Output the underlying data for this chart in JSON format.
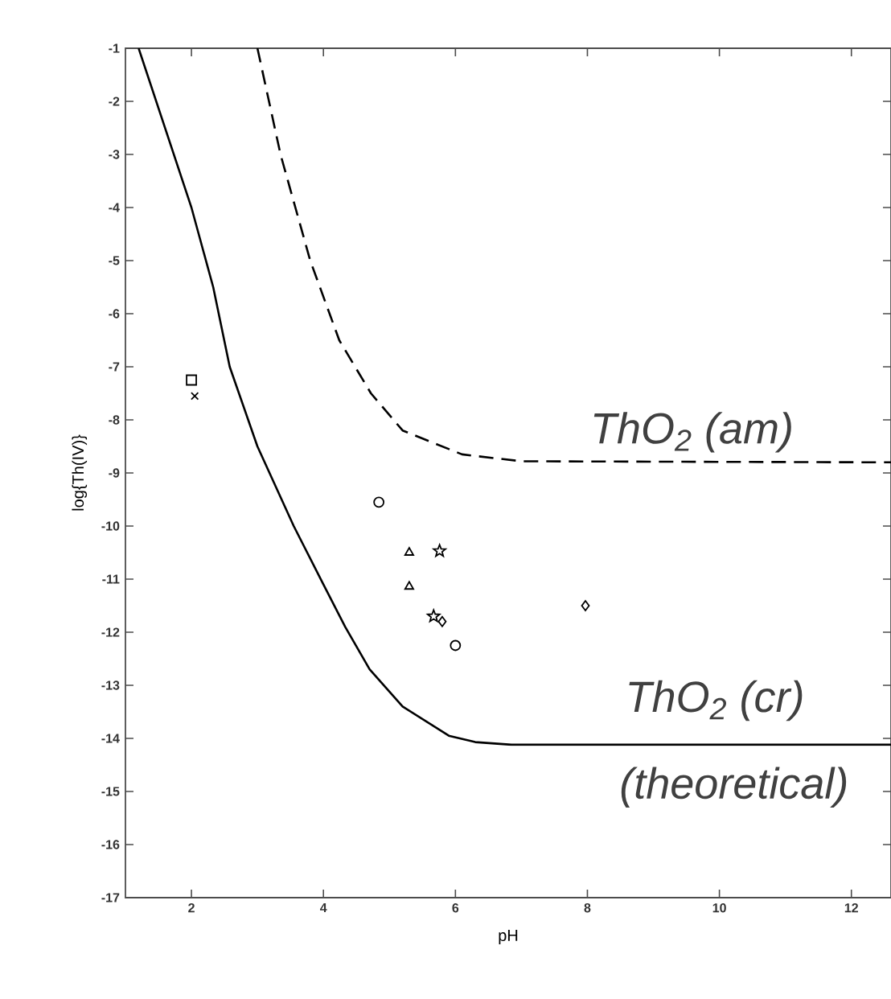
{
  "chart_data": {
    "type": "line",
    "xlabel": "pH",
    "ylabel": "log{Th(IV)}",
    "xlim": [
      1,
      12.6
    ],
    "ylim": [
      -17,
      -1
    ],
    "xticks": [
      2,
      4,
      6,
      8,
      10,
      12
    ],
    "yticks": [
      -17,
      -16,
      -15,
      -14,
      -13,
      -12,
      -11,
      -10,
      -9,
      -8,
      -7,
      -6,
      -5,
      -4,
      -3,
      -2,
      -1
    ],
    "series": [
      {
        "type": "line",
        "color": "#000000",
        "line_style": "solid",
        "marker": "none",
        "x": [
          1.2,
          1.6,
          2.0,
          2.33,
          2.58,
          3.0,
          3.55,
          4.0,
          4.33,
          4.7,
          5.2,
          5.9,
          6.3,
          6.85,
          12.6
        ],
        "values": [
          -1,
          -2.5,
          -4,
          -5.5,
          -7,
          -8.5,
          -10,
          -11.1,
          -11.9,
          -12.7,
          -13.4,
          -13.95,
          -14.07,
          -14.12,
          -14.12
        ]
      },
      {
        "type": "line",
        "color": "#000000",
        "line_style": "dashed",
        "marker": "none",
        "x": [
          3.0,
          3.35,
          3.8,
          4.24,
          4.72,
          5.2,
          6.1,
          7.0,
          12.6
        ],
        "values": [
          -1,
          -3,
          -5,
          -6.5,
          -7.5,
          -8.2,
          -8.65,
          -8.78,
          -8.8
        ]
      },
      {
        "type": "scatter",
        "color": "#000000",
        "marker": "square",
        "x": [
          2.0
        ],
        "values": [
          -7.25
        ]
      },
      {
        "type": "scatter",
        "color": "#000000",
        "marker": "cross",
        "x": [
          2.05
        ],
        "values": [
          -7.55
        ]
      },
      {
        "type": "scatter",
        "color": "#000000",
        "marker": "circle",
        "x": [
          4.84,
          6.0
        ],
        "values": [
          -9.55,
          -12.25
        ]
      },
      {
        "type": "scatter",
        "color": "#000000",
        "marker": "triangle",
        "x": [
          5.3,
          5.3
        ],
        "values": [
          -10.5,
          -11.14
        ]
      },
      {
        "type": "scatter",
        "color": "#000000",
        "marker": "star",
        "x": [
          5.76,
          5.67
        ],
        "values": [
          -10.47,
          -11.7
        ]
      },
      {
        "type": "scatter",
        "color": "#000000",
        "marker": "diamond",
        "x": [
          5.8,
          7.97
        ],
        "values": [
          -11.8,
          -11.5
        ]
      }
    ],
    "annotations": [
      "ThO$_{2}$ (am)",
      "ThO$_{2}$ (cr)",
      "(theoretical)"
    ]
  }
}
